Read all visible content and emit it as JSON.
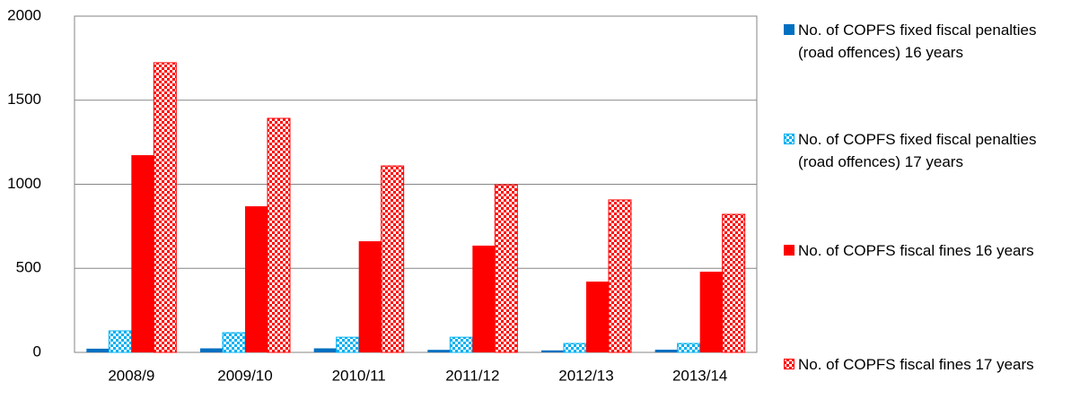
{
  "chart_data": {
    "type": "bar",
    "categories": [
      "2008/9",
      "2009/10",
      "2010/11",
      "2011/12",
      "2012/13",
      "2013/14"
    ],
    "series": [
      {
        "name": "No. of COPFS fixed fiscal penalties (road offences) 16 years",
        "color": "#0070c0",
        "pattern": false,
        "values": [
          22,
          24,
          24,
          15,
          12,
          16
        ]
      },
      {
        "name": "No. of COPFS fixed fiscal penalties (road offences) 17 years",
        "color": "#00b0f0",
        "pattern": true,
        "values": [
          128,
          117,
          90,
          90,
          53,
          53
        ]
      },
      {
        "name": "No. of COPFS fiscal fines 16 years",
        "color": "#ff0000",
        "pattern": false,
        "values": [
          1173,
          869,
          661,
          635,
          421,
          480
        ]
      },
      {
        "name": "No. of COPFS fiscal fines 17 years",
        "color": "#ff0000",
        "pattern": true,
        "values": [
          1723,
          1392,
          1109,
          997,
          907,
          821
        ]
      }
    ],
    "ylim": [
      0,
      2000
    ],
    "yticks": [
      0,
      500,
      1000,
      1500,
      2000
    ],
    "grid": true,
    "legend": "right"
  }
}
